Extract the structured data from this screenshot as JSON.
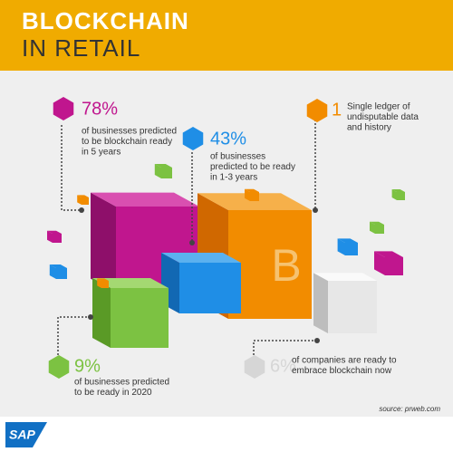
{
  "header": {
    "title_line1": "BLOCKCHAIN",
    "title_line2": "IN RETAIL"
  },
  "stats": [
    {
      "value": "78%",
      "description": [
        "of businesses predicted",
        "to be blockchain ready",
        "in 5 years"
      ]
    },
    {
      "value": "43%",
      "description": [
        "of businesses",
        "predicted to be ready",
        "in 1-3 years"
      ]
    },
    {
      "value": "1",
      "description": [
        "Single ledger of",
        "undisputable data",
        "and history"
      ]
    },
    {
      "value": "9%",
      "description": [
        "of businesses predicted",
        "to be ready in 2020"
      ]
    },
    {
      "value": "6%",
      "description": [
        "of companies are ready to",
        "embrace blockchain now"
      ]
    }
  ],
  "footer": {
    "source": "source: prweb.com",
    "logo": "SAP"
  }
}
